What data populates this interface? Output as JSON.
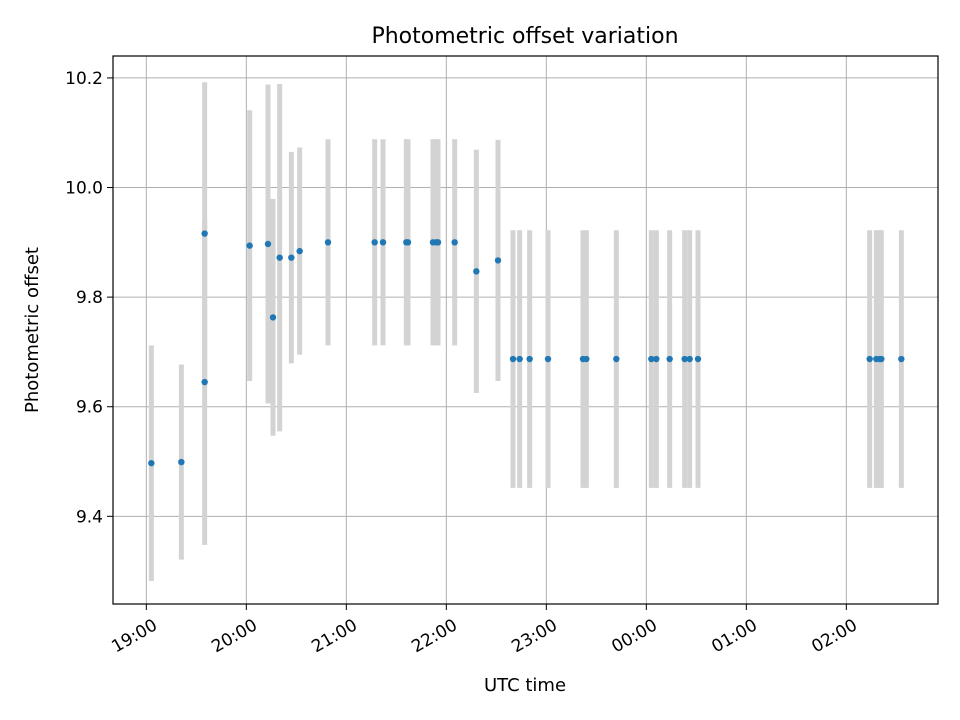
{
  "chart_data": {
    "type": "scatter",
    "title": "Photometric offset variation",
    "xlabel": "UTC time",
    "ylabel": "Photometric offset",
    "xlim": [
      "18:40",
      "02:55"
    ],
    "ylim": [
      9.24,
      10.24
    ],
    "yticks": [
      9.4,
      9.6,
      9.8,
      10.0,
      10.2
    ],
    "yticklabels": [
      "9.4",
      "9.6",
      "9.8",
      "10.0",
      "10.2"
    ],
    "xticks": [
      "19:00",
      "20:00",
      "21:00",
      "22:00",
      "23:00",
      "00:00",
      "01:00",
      "02:00"
    ],
    "xticklabels": [
      "19:00",
      "20:00",
      "21:00",
      "22:00",
      "23:00",
      "00:00",
      "01:00",
      "02:00"
    ],
    "grid": true,
    "colors": {
      "point": "#1f77b4",
      "errorbar": "#d3d3d3"
    },
    "points": [
      {
        "t": "19:03",
        "y": 9.497,
        "err": 0.215
      },
      {
        "t": "19:21",
        "y": 9.499,
        "err": 0.178
      },
      {
        "t": "19:35",
        "y": 9.645,
        "err": 0.297
      },
      {
        "t": "19:35",
        "y": 9.916,
        "err": 0.276
      },
      {
        "t": "20:02",
        "y": 9.894,
        "err": 0.247
      },
      {
        "t": "20:13",
        "y": 9.897,
        "err": 0.291
      },
      {
        "t": "20:16",
        "y": 9.763,
        "err": 0.216
      },
      {
        "t": "20:20",
        "y": 9.872,
        "err": 0.317
      },
      {
        "t": "20:27",
        "y": 9.872,
        "err": 0.193
      },
      {
        "t": "20:32",
        "y": 9.884,
        "err": 0.189
      },
      {
        "t": "20:49",
        "y": 9.9,
        "err": 0.188
      },
      {
        "t": "21:17",
        "y": 9.9,
        "err": 0.188
      },
      {
        "t": "21:22",
        "y": 9.9,
        "err": 0.188
      },
      {
        "t": "21:36",
        "y": 9.9,
        "err": 0.188
      },
      {
        "t": "21:37",
        "y": 9.9,
        "err": 0.188
      },
      {
        "t": "21:52",
        "y": 9.9,
        "err": 0.188
      },
      {
        "t": "21:54",
        "y": 9.9,
        "err": 0.188
      },
      {
        "t": "21:55",
        "y": 9.9,
        "err": 0.188
      },
      {
        "t": "22:05",
        "y": 9.9,
        "err": 0.188
      },
      {
        "t": "22:18",
        "y": 9.847,
        "err": 0.222
      },
      {
        "t": "22:31",
        "y": 9.867,
        "err": 0.22
      },
      {
        "t": "22:40",
        "y": 9.687,
        "err": 0.235
      },
      {
        "t": "22:44",
        "y": 9.687,
        "err": 0.235
      },
      {
        "t": "22:50",
        "y": 9.687,
        "err": 0.235
      },
      {
        "t": "23:01",
        "y": 9.687,
        "err": 0.235
      },
      {
        "t": "23:22",
        "y": 9.687,
        "err": 0.235
      },
      {
        "t": "23:24",
        "y": 9.687,
        "err": 0.235
      },
      {
        "t": "23:42",
        "y": 9.687,
        "err": 0.235
      },
      {
        "t": "00:03",
        "y": 9.687,
        "err": 0.235
      },
      {
        "t": "00:06",
        "y": 9.687,
        "err": 0.235
      },
      {
        "t": "00:14",
        "y": 9.687,
        "err": 0.235
      },
      {
        "t": "00:23",
        "y": 9.687,
        "err": 0.235
      },
      {
        "t": "00:26",
        "y": 9.687,
        "err": 0.235
      },
      {
        "t": "00:31",
        "y": 9.687,
        "err": 0.235
      },
      {
        "t": "02:14",
        "y": 9.687,
        "err": 0.235
      },
      {
        "t": "02:18",
        "y": 9.687,
        "err": 0.235
      },
      {
        "t": "02:20",
        "y": 9.687,
        "err": 0.235
      },
      {
        "t": "02:21",
        "y": 9.687,
        "err": 0.235
      },
      {
        "t": "02:33",
        "y": 9.687,
        "err": 0.235
      }
    ]
  }
}
